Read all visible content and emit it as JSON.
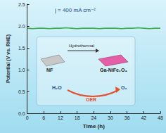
{
  "chart_data": {
    "type": "line",
    "x_label": "Time (h)",
    "y_label": "Potential (V vs. RHE)",
    "annotations": [
      "j = 400 mA cm⁻²",
      "Hydrothermal",
      "NF",
      "Ga-NiFe₂O₄",
      "H₂O",
      "O₂",
      "OER"
    ],
    "x": [
      0,
      2,
      4,
      6,
      8,
      10,
      12,
      14,
      16,
      18,
      20,
      22,
      24,
      26,
      28,
      30,
      32,
      34,
      36,
      38,
      40,
      42,
      44,
      46,
      48
    ],
    "series": [
      {
        "name": "Ga-NiFe₂O₄",
        "color": "#3fae49",
        "marker": "none",
        "values": [
          1.95,
          1.94,
          1.95,
          1.95,
          1.94,
          1.95,
          1.95,
          1.96,
          1.95,
          1.94,
          1.95,
          1.95,
          1.95,
          1.94,
          1.95,
          1.95,
          1.95,
          1.94,
          1.95,
          1.95,
          1.96,
          1.95,
          1.94,
          1.95,
          1.95
        ]
      }
    ],
    "xlim": [
      0,
      48
    ],
    "xticks": [
      0,
      6,
      12,
      18,
      24,
      30,
      36,
      42,
      48
    ],
    "ylim": [
      0,
      2.5
    ],
    "yticks": [
      {
        "value": 0,
        "label": "0.0"
      },
      0.5,
      {
        "value": 1,
        "label": "1.0"
      },
      1.5,
      {
        "value": 2,
        "label": "2.0"
      },
      2.5
    ],
    "grid": false
  }
}
